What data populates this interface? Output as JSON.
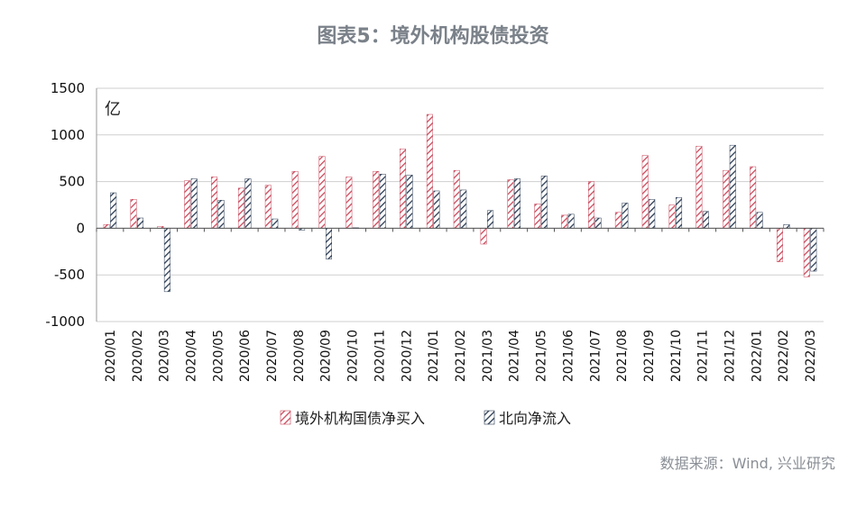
{
  "title": "图表5：境外机构股债投资",
  "source": "数据来源：Wind, 兴业研究",
  "chart_data": {
    "type": "bar",
    "unit_label": "亿",
    "ylim": [
      -1000,
      1500
    ],
    "yticks": [
      -1000,
      -500,
      0,
      500,
      1000,
      1500
    ],
    "grid": true,
    "legend_position": "bottom",
    "categories": [
      "2020/01",
      "2020/02",
      "2020/03",
      "2020/04",
      "2020/05",
      "2020/06",
      "2020/07",
      "2020/08",
      "2020/09",
      "2020/10",
      "2020/11",
      "2020/12",
      "2021/01",
      "2021/02",
      "2021/03",
      "2021/04",
      "2021/05",
      "2021/06",
      "2021/07",
      "2021/08",
      "2021/09",
      "2021/10",
      "2021/11",
      "2021/12",
      "2022/01",
      "2022/02",
      "2022/03"
    ],
    "series": [
      {
        "name": "境外机构国债净买入",
        "color": "#c9485b",
        "values": [
          40,
          310,
          20,
          510,
          550,
          430,
          460,
          610,
          770,
          550,
          610,
          850,
          1220,
          620,
          -170,
          520,
          260,
          140,
          500,
          170,
          780,
          250,
          880,
          620,
          660,
          -360,
          -520
        ]
      },
      {
        "name": "北向净流入",
        "color": "#2a3a52",
        "values": [
          380,
          110,
          -680,
          530,
          300,
          530,
          100,
          -20,
          -330,
          5,
          580,
          570,
          400,
          410,
          190,
          530,
          560,
          150,
          110,
          270,
          310,
          330,
          180,
          890,
          170,
          40,
          -460
        ]
      }
    ]
  }
}
